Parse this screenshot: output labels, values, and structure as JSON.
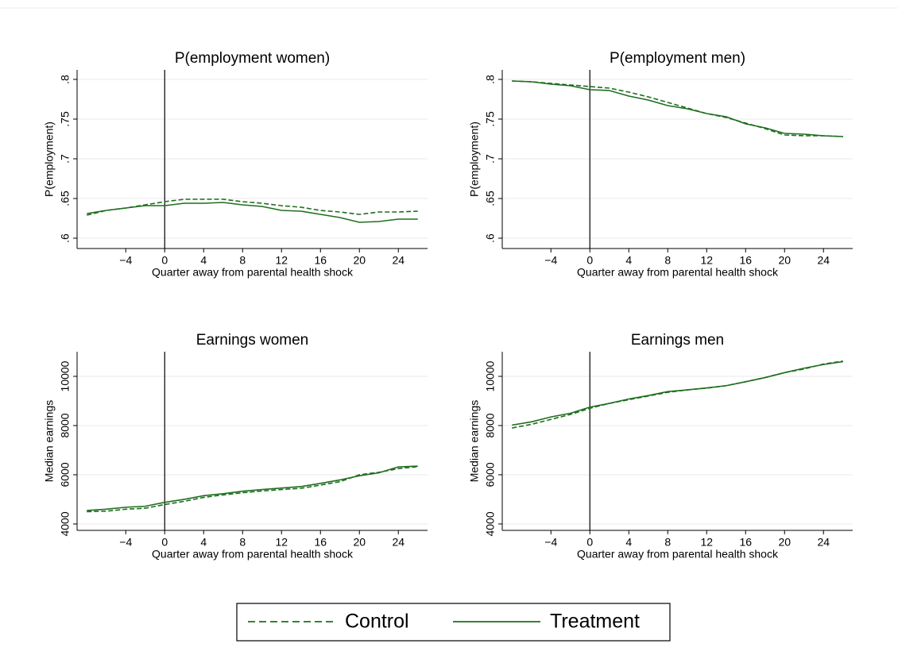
{
  "chart_data": [
    {
      "type": "line",
      "title": "P(employment women)",
      "xlabel": "Quarter away from parental health shock",
      "ylabel": "P(employment)",
      "x": [
        -8,
        -6,
        -4,
        -2,
        0,
        2,
        4,
        6,
        8,
        10,
        12,
        14,
        16,
        18,
        20,
        22,
        24,
        26
      ],
      "series": [
        {
          "name": "Control",
          "color": "#1f6e1f",
          "line_style": "dashed",
          "values": [
            0.629,
            0.635,
            0.638,
            0.642,
            0.646,
            0.649,
            0.649,
            0.649,
            0.646,
            0.644,
            0.641,
            0.639,
            0.635,
            0.633,
            0.63,
            0.633,
            0.633,
            0.634
          ]
        },
        {
          "name": "Treatment",
          "color": "#1f6e1f",
          "line_style": "solid",
          "values": [
            0.631,
            0.635,
            0.638,
            0.641,
            0.641,
            0.644,
            0.644,
            0.645,
            0.642,
            0.64,
            0.635,
            0.634,
            0.63,
            0.626,
            0.62,
            0.621,
            0.624,
            0.624
          ]
        }
      ],
      "xlim": [
        -9,
        27
      ],
      "xticks": [
        {
          "value": -4,
          "label": "−4"
        },
        0,
        4,
        8,
        12,
        16,
        20,
        24
      ],
      "ylim": [
        0.587,
        0.812
      ],
      "yticks": [
        {
          "value": 0.6,
          "label": ".6"
        },
        {
          "value": 0.65,
          "label": ".65"
        },
        {
          "value": 0.7,
          "label": ".7"
        },
        {
          "value": 0.75,
          "label": ".75"
        },
        {
          "value": 0.8,
          "label": ".8"
        }
      ],
      "grid": true,
      "xline": 0
    },
    {
      "type": "line",
      "title": "P(employment men)",
      "xlabel": "Quarter away from parental health shock",
      "ylabel": "P(employment)",
      "x": [
        -8,
        -6,
        -4,
        -2,
        0,
        2,
        4,
        6,
        8,
        10,
        12,
        14,
        16,
        18,
        20,
        22,
        24,
        26
      ],
      "series": [
        {
          "name": "Control",
          "color": "#1f6e1f",
          "line_style": "dashed",
          "values": [
            0.798,
            0.797,
            0.795,
            0.793,
            0.791,
            0.789,
            0.784,
            0.778,
            0.771,
            0.764,
            0.757,
            0.752,
            0.745,
            0.738,
            0.73,
            0.729,
            0.729,
            0.728
          ]
        },
        {
          "name": "Treatment",
          "color": "#1f6e1f",
          "line_style": "solid",
          "values": [
            0.798,
            0.797,
            0.794,
            0.792,
            0.787,
            0.786,
            0.779,
            0.774,
            0.767,
            0.763,
            0.757,
            0.753,
            0.744,
            0.739,
            0.732,
            0.731,
            0.729,
            0.728
          ]
        }
      ],
      "xlim": [
        -9,
        27
      ],
      "xticks": [
        {
          "value": -4,
          "label": "−4"
        },
        0,
        4,
        8,
        12,
        16,
        20,
        24
      ],
      "ylim": [
        0.587,
        0.812
      ],
      "yticks": [
        {
          "value": 0.6,
          "label": ".6"
        },
        {
          "value": 0.65,
          "label": ".65"
        },
        {
          "value": 0.7,
          "label": ".7"
        },
        {
          "value": 0.75,
          "label": ".75"
        },
        {
          "value": 0.8,
          "label": ".8"
        }
      ],
      "grid": true,
      "xline": 0
    },
    {
      "type": "line",
      "title": "Earnings women",
      "xlabel": "Quarter away from parental health shock",
      "ylabel": "Median earnings",
      "x": [
        -8,
        -6,
        -4,
        -2,
        0,
        2,
        4,
        6,
        8,
        10,
        12,
        14,
        16,
        18,
        20,
        22,
        24,
        26
      ],
      "series": [
        {
          "name": "Control",
          "color": "#1f6e1f",
          "line_style": "dashed",
          "values": [
            4500,
            4520,
            4600,
            4640,
            4790,
            4920,
            5080,
            5180,
            5270,
            5340,
            5400,
            5450,
            5580,
            5720,
            6000,
            6100,
            6250,
            6330
          ]
        },
        {
          "name": "Treatment",
          "color": "#1f6e1f",
          "line_style": "solid",
          "values": [
            4550,
            4600,
            4680,
            4720,
            4880,
            5000,
            5150,
            5230,
            5330,
            5400,
            5460,
            5520,
            5650,
            5790,
            5960,
            6080,
            6320,
            6350
          ]
        }
      ],
      "xlim": [
        -9,
        27
      ],
      "xticks": [
        {
          "value": -4,
          "label": "−4"
        },
        0,
        4,
        8,
        12,
        16,
        20,
        24
      ],
      "ylim": [
        3740,
        11000
      ],
      "yticks": [
        4000,
        6000,
        8000,
        10000
      ],
      "grid": true,
      "xline": 0
    },
    {
      "type": "line",
      "title": "Earnings men",
      "xlabel": "Quarter away from parental health shock",
      "ylabel": "Median earnings",
      "x": [
        -8,
        -6,
        -4,
        -2,
        0,
        2,
        4,
        6,
        8,
        10,
        12,
        14,
        16,
        18,
        20,
        22,
        24,
        26
      ],
      "series": [
        {
          "name": "Control",
          "color": "#1f6e1f",
          "line_style": "dashed",
          "values": [
            7900,
            8050,
            8250,
            8450,
            8700,
            8900,
            9050,
            9200,
            9350,
            9450,
            9520,
            9620,
            9780,
            9950,
            10150,
            10300,
            10500,
            10620
          ]
        },
        {
          "name": "Treatment",
          "color": "#1f6e1f",
          "line_style": "solid",
          "values": [
            8020,
            8150,
            8350,
            8500,
            8750,
            8900,
            9080,
            9220,
            9380,
            9450,
            9530,
            9620,
            9780,
            9950,
            10150,
            10330,
            10480,
            10600
          ]
        }
      ],
      "xlim": [
        -9,
        27
      ],
      "xticks": [
        {
          "value": -4,
          "label": "−4"
        },
        0,
        4,
        8,
        12,
        16,
        20,
        24
      ],
      "ylim": [
        3740,
        11000
      ],
      "yticks": [
        4000,
        6000,
        8000,
        10000
      ],
      "grid": true,
      "xline": 0
    }
  ]
}
